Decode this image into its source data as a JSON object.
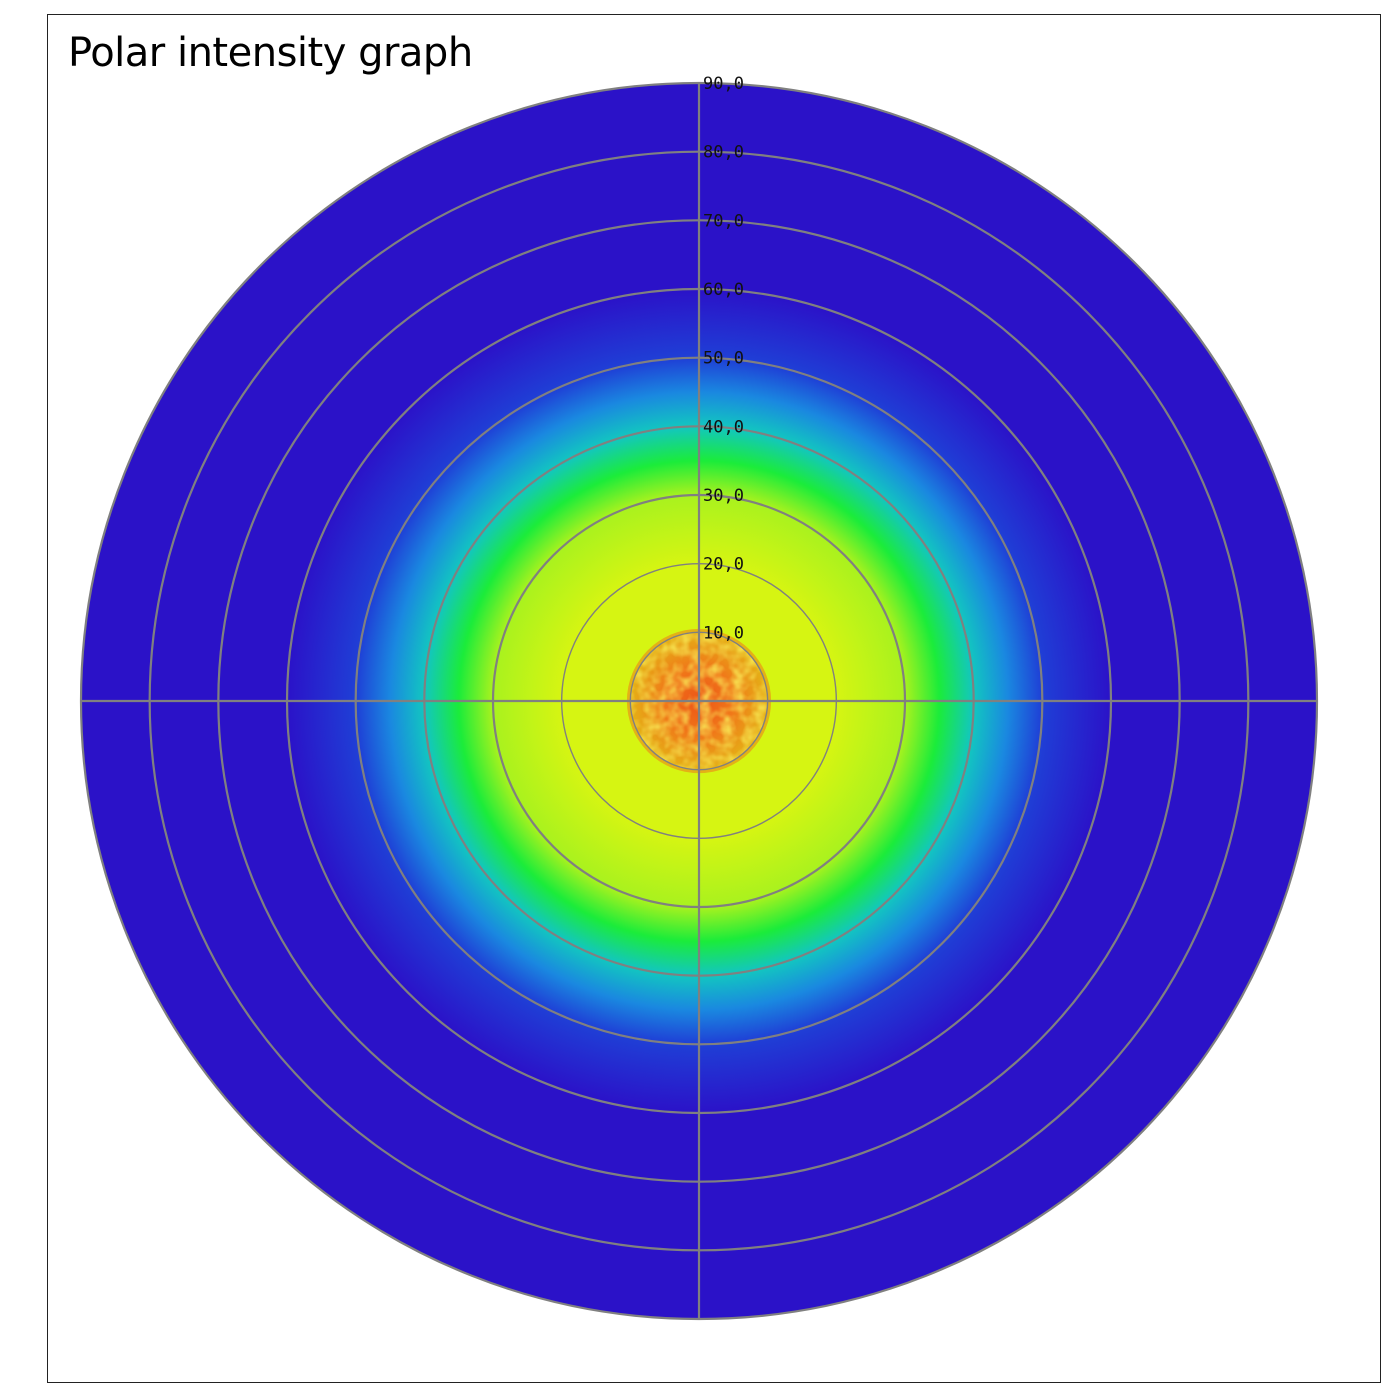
{
  "chart_data": {
    "type": "heatmap",
    "subtype": "polar",
    "title": "Polar intensity graph",
    "radial_ticks": [
      10,
      20,
      30,
      40,
      50,
      60,
      70,
      80,
      90
    ],
    "radial_tick_labels": [
      "10,0",
      "20,0",
      "30,0",
      "40,0",
      "50,0",
      "60,0",
      "70,0",
      "80,0",
      "90,0"
    ],
    "rlim": [
      0,
      90
    ],
    "crosshair_axes": true,
    "grid": true,
    "colormap": [
      "#2b12c8",
      "#1f3fd6",
      "#1a88e0",
      "#12c6c0",
      "#1bec3a",
      "#a9f21e",
      "#d6f512",
      "#f2c21c",
      "#f0781a",
      "#e82a16"
    ],
    "intensity_profile": [
      {
        "r": 0,
        "intensity": 1.0
      },
      {
        "r": 5,
        "intensity": 0.92
      },
      {
        "r": 10,
        "intensity": 0.72
      },
      {
        "r": 20,
        "intensity": 0.64
      },
      {
        "r": 30,
        "intensity": 0.55
      },
      {
        "r": 35,
        "intensity": 0.45
      },
      {
        "r": 40,
        "intensity": 0.33
      },
      {
        "r": 45,
        "intensity": 0.22
      },
      {
        "r": 50,
        "intensity": 0.12
      },
      {
        "r": 60,
        "intensity": 0.04
      },
      {
        "r": 70,
        "intensity": 0.0
      },
      {
        "r": 90,
        "intensity": 0.0
      }
    ],
    "grid_color": "#808080"
  }
}
